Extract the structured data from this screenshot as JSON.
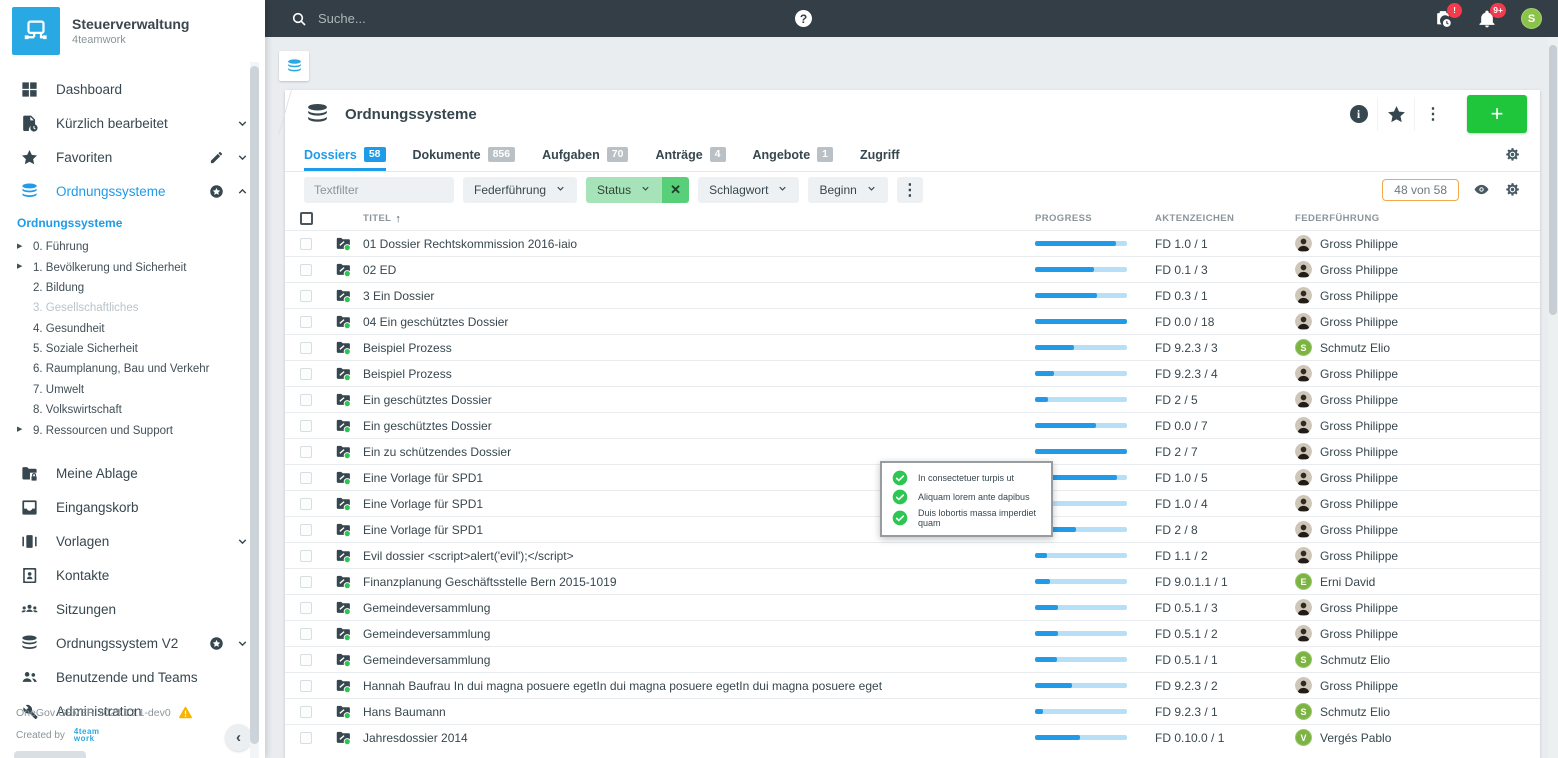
{
  "colors": {
    "topbar": "#333e46",
    "accent_blue": "#1e9be9",
    "logo_blue": "#29a9e3",
    "green_button": "#1fc53b",
    "status_filter_green": "#a7e3b8",
    "status_clear_green": "#58d07a",
    "progress_fill": "#219ae8",
    "progress_track": "#b7e0f8",
    "check_green": "#2dc653",
    "badge_red": "#f23b4d",
    "avatar_green": "#7cb342",
    "warning_yellow": "#f7b500",
    "count_pill_border": "#f0aa47"
  },
  "brand": {
    "title": "Steuerverwaltung",
    "subtitle": "4teamwork"
  },
  "topbar": {
    "search_placeholder": "Suche...",
    "help_glyph": "?",
    "tasks_badge": "!",
    "notifications_badge": "9+",
    "user_initial": "S",
    "icons": [
      "search-icon",
      "help-icon",
      "clipboard-clock-icon",
      "bell-icon",
      "user-avatar"
    ]
  },
  "sidebar": {
    "items_top": [
      {
        "label": "Dashboard",
        "icon": "dashboard"
      },
      {
        "label": "Kürzlich bearbeitet",
        "icon": "doc-clock",
        "chevron": "down"
      },
      {
        "label": "Favoriten",
        "icon": "star",
        "pencil": true,
        "chevron": "down"
      },
      {
        "label": "Ordnungssysteme",
        "icon": "db",
        "active": true,
        "starbadge": true,
        "chevron": "up"
      }
    ],
    "tree": {
      "root": "Ordnungssysteme",
      "items": [
        {
          "label": "0. Führung",
          "expandable": true
        },
        {
          "label": "1. Bevölkerung und Sicherheit",
          "expandable": true
        },
        {
          "label": "2. Bildung"
        },
        {
          "label": "3. Gesellschaftliches",
          "disabled": true
        },
        {
          "label": "4. Gesundheit"
        },
        {
          "label": "5. Soziale Sicherheit"
        },
        {
          "label": "6. Raumplanung, Bau und Verkehr"
        },
        {
          "label": "7. Umwelt"
        },
        {
          "label": "8. Volkswirtschaft"
        },
        {
          "label": "9. Ressourcen und Support",
          "expandable": true
        }
      ]
    },
    "items_bottom": [
      {
        "label": "Meine Ablage",
        "icon": "folder-lock"
      },
      {
        "label": "Eingangskorb",
        "icon": "inbox"
      },
      {
        "label": "Vorlagen",
        "icon": "templates",
        "chevron": "down"
      },
      {
        "label": "Kontakte",
        "icon": "contacts"
      },
      {
        "label": "Sitzungen",
        "icon": "meetings"
      },
      {
        "label": "Ordnungssystem V2",
        "icon": "db",
        "starbadge": true,
        "chevron": "down"
      },
      {
        "label": "Benutzende und Teams",
        "icon": "people"
      },
      {
        "label": "Administration",
        "icon": "wrench"
      }
    ],
    "footer": {
      "version": "OneGov GEVER 2023.13.1-dev0",
      "created_by": "Created by",
      "logo_line1": "4team",
      "logo_line2": "work",
      "collapse_glyph": "‹"
    }
  },
  "page": {
    "title": "Ordnungssysteme",
    "tabs": [
      {
        "label": "Dossiers",
        "count": "58",
        "active": true
      },
      {
        "label": "Dokumente",
        "count": "856"
      },
      {
        "label": "Aufgaben",
        "count": "70"
      },
      {
        "label": "Anträge",
        "count": "4"
      },
      {
        "label": "Angebote",
        "count": "1"
      },
      {
        "label": "Zugriff"
      }
    ],
    "header_actions": [
      "info-icon",
      "star-outline-icon",
      "kebab-icon",
      "add-button"
    ],
    "add_button_label": "+",
    "filters": {
      "text_placeholder": "Textfilter",
      "dropdowns": [
        {
          "label": "Federführung"
        },
        {
          "label": "Status",
          "active": true,
          "clear_glyph": "✕"
        },
        {
          "label": "Schlagwort"
        },
        {
          "label": "Beginn"
        }
      ],
      "more_glyph": "⋮",
      "result_count": "48 von 58"
    }
  },
  "table": {
    "columns": [
      "TITEL",
      "PROGRESS",
      "AKTENZEICHEN",
      "FEDERFÜHRUNG"
    ],
    "sort_glyph": "↑",
    "rows": [
      {
        "title": "01 Dossier Rechtskommission 2016-iaio",
        "progress": 88,
        "ref": "FD 1.0 / 1",
        "lead": "Gross Philippe",
        "avatar": "photo"
      },
      {
        "title": "02 ED",
        "progress": 64,
        "ref": "FD 0.1 / 3",
        "lead": "Gross Philippe",
        "avatar": "photo"
      },
      {
        "title": "3 Ein Dossier",
        "progress": 67,
        "ref": "FD 0.3 / 1",
        "lead": "Gross Philippe",
        "avatar": "photo"
      },
      {
        "title": "04 Ein geschütztes Dossier",
        "progress": 100,
        "ref": "FD 0.0 / 18",
        "lead": "Gross Philippe",
        "avatar": "photo"
      },
      {
        "title": "Beispiel Prozess",
        "progress": 42,
        "ref": "FD 9.2.3 / 3",
        "lead": "Schmutz Elio",
        "avatar": "S"
      },
      {
        "title": "Beispiel Prozess",
        "progress": 21,
        "ref": "FD 9.2.3 / 4",
        "lead": "Gross Philippe",
        "avatar": "photo"
      },
      {
        "title": "Ein geschütztes Dossier",
        "progress": 14,
        "ref": "FD 2 / 5",
        "lead": "Gross Philippe",
        "avatar": "photo"
      },
      {
        "title": "Ein geschütztes Dossier",
        "progress": 66,
        "ref": "FD 0.0 / 7",
        "lead": "Gross Philippe",
        "avatar": "photo"
      },
      {
        "title": "Ein zu schützendes Dossier",
        "progress": 100,
        "ref": "FD 2 / 7",
        "lead": "Gross Philippe",
        "avatar": "photo"
      },
      {
        "title": "Eine Vorlage für SPD1",
        "progress": 89,
        "ref": "FD 1.0 / 5",
        "lead": "Gross Philippe",
        "avatar": "photo"
      },
      {
        "title": "Eine Vorlage für SPD1",
        "progress": 5,
        "ref": "FD 1.0 / 4",
        "lead": "Gross Philippe",
        "avatar": "photo"
      },
      {
        "title": "Eine Vorlage für SPD1",
        "progress": 45,
        "ref": "FD 2 / 8",
        "lead": "Gross Philippe",
        "avatar": "photo"
      },
      {
        "title": "Evil dossier <script>alert('evil');</script>",
        "progress": 13,
        "ref": "FD 1.1 / 2",
        "lead": "Gross Philippe",
        "avatar": "photo"
      },
      {
        "title": "Finanzplanung Geschäftsstelle Bern 2015-1019",
        "progress": 16,
        "ref": "FD 9.0.1.1 / 1",
        "lead": "Erni David",
        "avatar": "E"
      },
      {
        "title": "Gemeindeversammlung",
        "progress": 25,
        "ref": "FD 0.5.1 / 3",
        "lead": "Gross Philippe",
        "avatar": "photo"
      },
      {
        "title": "Gemeindeversammlung",
        "progress": 25,
        "ref": "FD 0.5.1 / 2",
        "lead": "Gross Philippe",
        "avatar": "photo"
      },
      {
        "title": "Gemeindeversammlung",
        "progress": 24,
        "ref": "FD 0.5.1 / 1",
        "lead": "Schmutz Elio",
        "avatar": "S"
      },
      {
        "title": "Hannah Baufrau In dui magna posuere egetIn dui magna posuere egetIn dui magna posuere eget",
        "progress": 40,
        "ref": "FD 9.2.3 / 2",
        "lead": "Gross Philippe",
        "avatar": "photo"
      },
      {
        "title": "Hans Baumann",
        "progress": 9,
        "ref": "FD 9.2.3 / 1",
        "lead": "Schmutz Elio",
        "avatar": "S"
      },
      {
        "title": "Jahresdossier 2014",
        "progress": 49,
        "ref": "FD 0.10.0 / 1",
        "lead": "Vergés Pablo",
        "avatar": "V"
      }
    ]
  },
  "tooltip": {
    "items": [
      "In consectetuer turpis ut",
      "Aliquam lorem ante dapibus",
      "Duis lobortis massa imperdiet quam"
    ]
  }
}
